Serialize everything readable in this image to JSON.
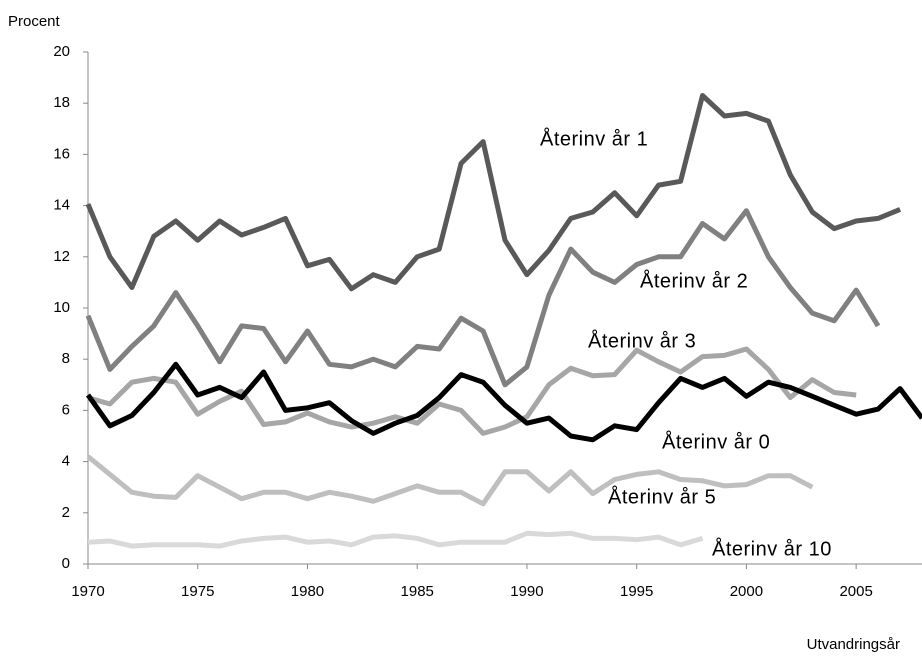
{
  "chart_data": {
    "type": "line",
    "ylabel": "Procent",
    "xlabel": "Utvandringsår",
    "xlim": [
      1970,
      2008
    ],
    "xticks": [
      1970,
      1975,
      1980,
      1985,
      1990,
      1995,
      2000,
      2005
    ],
    "ylim": [
      0,
      20
    ],
    "yticks": [
      0,
      2,
      4,
      6,
      8,
      10,
      12,
      14,
      16,
      18,
      20
    ],
    "grid": false,
    "x": [
      1970,
      1971,
      1972,
      1973,
      1974,
      1975,
      1976,
      1977,
      1978,
      1979,
      1980,
      1981,
      1982,
      1983,
      1984,
      1985,
      1986,
      1987,
      1988,
      1989,
      1990,
      1991,
      1992,
      1993,
      1994,
      1995,
      1996,
      1997,
      1998,
      1999,
      2000,
      2001,
      2002,
      2003,
      2004,
      2005,
      2006,
      2007,
      2008
    ],
    "series": [
      {
        "name": "Återinv år 1",
        "color": "#595959",
        "values": [
          14.06,
          12.0,
          10.8,
          12.8,
          13.4,
          12.65,
          13.4,
          12.85,
          13.15,
          13.5,
          11.65,
          11.9,
          10.75,
          11.3,
          11.0,
          12.0,
          12.3,
          15.65,
          16.5,
          12.65,
          11.3,
          12.25,
          13.5,
          13.75,
          14.5,
          13.6,
          14.8,
          14.95,
          18.3,
          17.5,
          17.6,
          17.3,
          15.2,
          13.75,
          13.1,
          13.4,
          13.5,
          13.85,
          null
        ]
      },
      {
        "name": "Återinv år 2",
        "color": "#808080",
        "values": [
          9.7,
          7.6,
          8.5,
          9.3,
          10.6,
          9.3,
          7.9,
          9.3,
          9.2,
          7.9,
          9.1,
          7.8,
          7.7,
          8.0,
          7.7,
          8.5,
          8.4,
          9.6,
          9.1,
          7.0,
          7.7,
          10.5,
          12.3,
          11.4,
          11.0,
          11.7,
          12.0,
          12.0,
          13.3,
          12.7,
          13.8,
          12.0,
          10.8,
          9.8,
          9.5,
          10.7,
          9.3,
          null,
          null
        ]
      },
      {
        "name": "Återinv år 3",
        "color": "#a6a6a6",
        "values": [
          6.5,
          6.25,
          7.1,
          7.25,
          7.1,
          5.85,
          6.35,
          6.75,
          5.45,
          5.55,
          5.9,
          5.55,
          5.35,
          5.5,
          5.75,
          5.5,
          6.25,
          6.0,
          5.1,
          5.35,
          5.75,
          7.0,
          7.65,
          7.35,
          7.4,
          8.35,
          7.9,
          7.5,
          8.1,
          8.15,
          8.4,
          7.6,
          6.5,
          7.2,
          6.7,
          6.6,
          null,
          null,
          null
        ]
      },
      {
        "name": "Återinv år 0",
        "color": "#000000",
        "values": [
          6.6,
          5.4,
          5.8,
          6.7,
          7.8,
          6.6,
          6.9,
          6.5,
          7.5,
          6.0,
          6.1,
          6.3,
          5.6,
          5.1,
          5.5,
          5.8,
          6.5,
          7.4,
          7.1,
          6.2,
          5.5,
          5.7,
          5.0,
          4.85,
          5.4,
          5.25,
          6.3,
          7.25,
          6.9,
          7.25,
          6.55,
          7.1,
          6.9,
          6.55,
          6.2,
          5.85,
          6.05,
          6.85,
          5.7
        ]
      },
      {
        "name": "Återinv år 5",
        "color": "#bfbfbf",
        "values": [
          4.2,
          3.5,
          2.8,
          2.65,
          2.6,
          3.45,
          3.0,
          2.55,
          2.8,
          2.8,
          2.55,
          2.8,
          2.65,
          2.45,
          2.75,
          3.05,
          2.8,
          2.8,
          2.35,
          3.6,
          3.6,
          2.85,
          3.6,
          2.75,
          3.3,
          3.5,
          3.6,
          3.3,
          3.25,
          3.05,
          3.1,
          3.45,
          3.45,
          3.0,
          null,
          null,
          null,
          null,
          null
        ]
      },
      {
        "name": "Återinv år 10",
        "color": "#d9d9d9",
        "values": [
          0.85,
          0.9,
          0.7,
          0.75,
          0.75,
          0.75,
          0.7,
          0.9,
          1.0,
          1.05,
          0.85,
          0.9,
          0.75,
          1.05,
          1.1,
          1.0,
          0.75,
          0.85,
          0.85,
          0.85,
          1.2,
          1.15,
          1.2,
          1.0,
          1.0,
          0.95,
          1.05,
          0.75,
          1.0,
          null,
          null,
          null,
          null,
          null,
          null,
          null,
          null,
          null,
          null
        ]
      }
    ]
  }
}
